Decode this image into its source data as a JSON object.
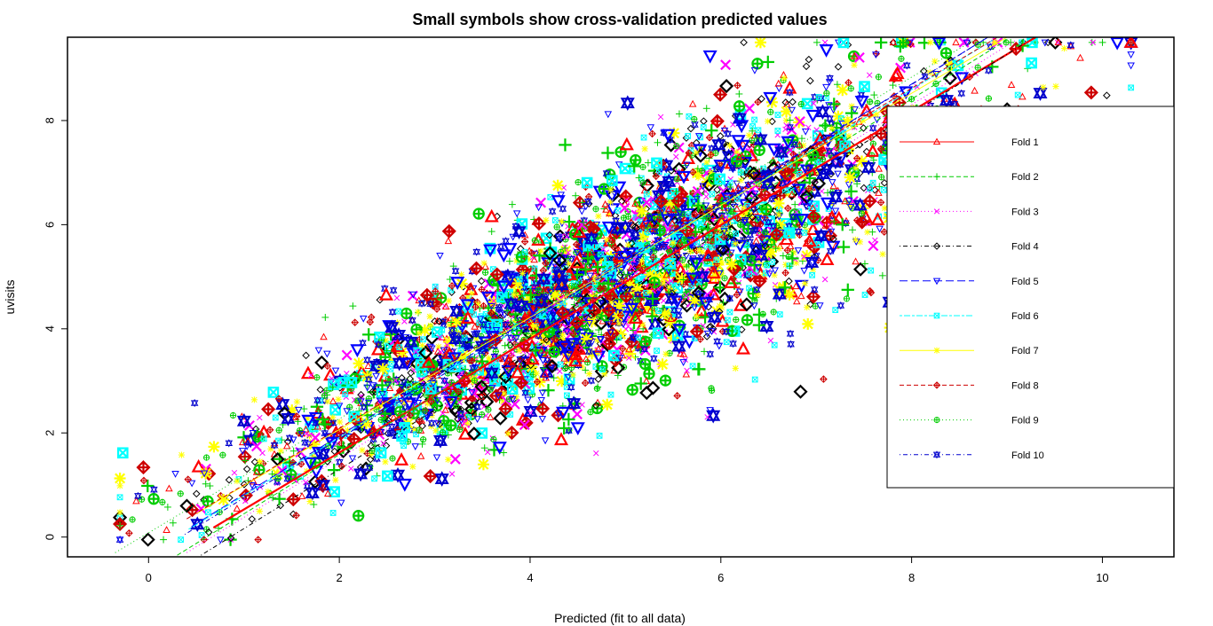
{
  "chart_data": {
    "type": "scatter",
    "title": "Small symbols show cross-validation predicted values",
    "xlabel": "Predicted (fit to all data)",
    "ylabel": "uvisits",
    "xlim": [
      -0.85,
      10.75
    ],
    "ylim": [
      -0.38,
      9.6
    ],
    "x_ticks": [
      0,
      2,
      4,
      6,
      8,
      10
    ],
    "y_ticks": [
      0,
      2,
      4,
      6,
      8
    ],
    "legend_position": "right",
    "series": [
      {
        "name": "Fold 1",
        "color": "#ff0000",
        "symbol": "triangle",
        "line": "solid",
        "fit": [
          [
            0.68,
            0.18
          ],
          [
            9.3,
            9.6
          ]
        ]
      },
      {
        "name": "Fold 2",
        "color": "#00cd00",
        "symbol": "plus",
        "line": "dashed",
        "fit": [
          [
            0.3,
            -0.35
          ],
          [
            9.0,
            9.55
          ]
        ]
      },
      {
        "name": "Fold 3",
        "color": "#ff00ff",
        "symbol": "x",
        "line": "dotted",
        "fit": [
          [
            0.4,
            -0.3
          ],
          [
            9.1,
            9.55
          ]
        ]
      },
      {
        "name": "Fold 4",
        "color": "#000000",
        "symbol": "diamond",
        "line": "dotdash",
        "fit": [
          [
            0.55,
            -0.35
          ],
          [
            9.2,
            9.5
          ]
        ]
      },
      {
        "name": "Fold 5",
        "color": "#0000ff",
        "symbol": "triangle-down",
        "line": "longdash",
        "fit": [
          [
            0.45,
            0.2
          ],
          [
            8.8,
            9.6
          ]
        ]
      },
      {
        "name": "Fold 6",
        "color": "#00ffff",
        "symbol": "square-x",
        "line": "twodash",
        "fit": [
          [
            0.42,
            0.15
          ],
          [
            8.9,
            9.6
          ]
        ]
      },
      {
        "name": "Fold 7",
        "color": "#ffff00",
        "symbol": "asterisk",
        "line": "solid",
        "fit": [
          [
            0.5,
            0.45
          ],
          [
            9.0,
            9.6
          ]
        ]
      },
      {
        "name": "Fold 8",
        "color": "#cd0000",
        "symbol": "diamond-plus",
        "line": "dashed",
        "fit": [
          [
            0.4,
            0.35
          ],
          [
            8.9,
            9.6
          ]
        ]
      },
      {
        "name": "Fold 9",
        "color": "#00cd00",
        "symbol": "circle-plus",
        "line": "dotted",
        "fit": [
          [
            -0.35,
            -0.3
          ],
          [
            8.7,
            9.6
          ]
        ]
      },
      {
        "name": "Fold 10",
        "color": "#0000cd",
        "symbol": "star-of-david",
        "line": "dotdash",
        "fit": [
          [
            0.38,
            0.05
          ],
          [
            8.8,
            9.6
          ]
        ]
      }
    ],
    "points_per_series": 400,
    "scatter_model": {
      "slope": 0.92,
      "intercept": 0.45,
      "noise_sd": 0.95,
      "x_mean": 4.8,
      "x_sd": 1.9
    },
    "grid": false
  }
}
